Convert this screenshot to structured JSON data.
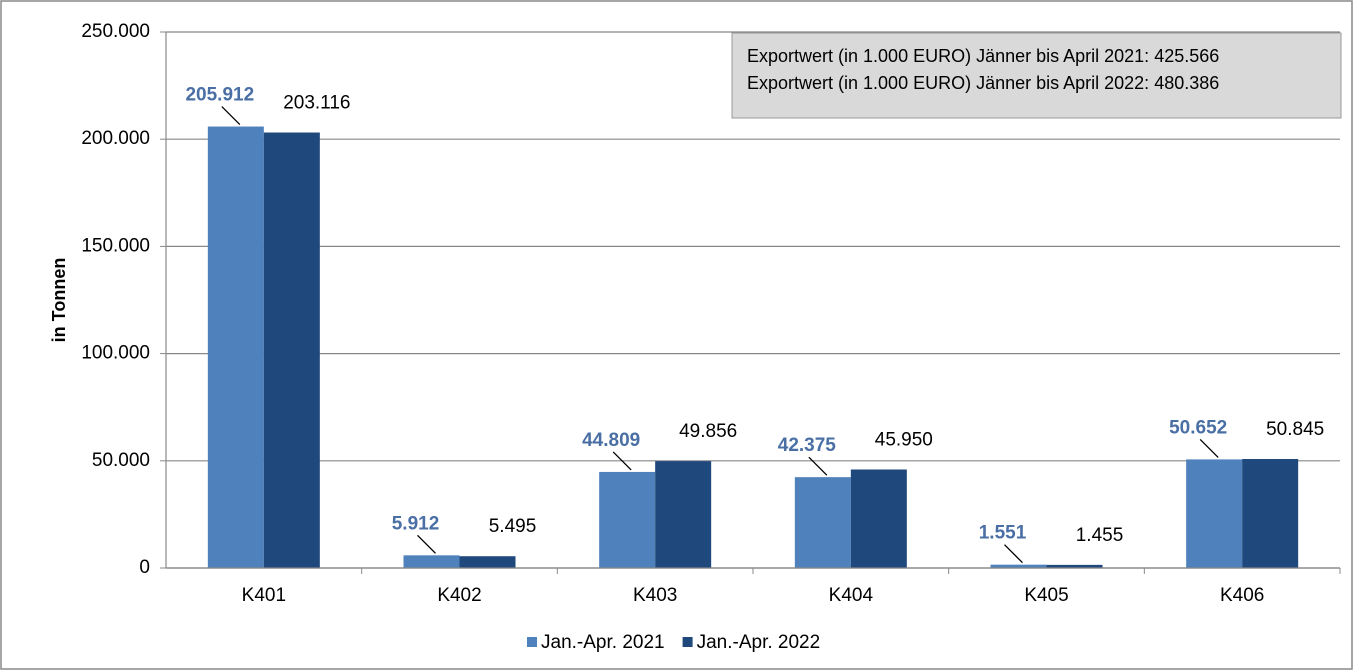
{
  "chart_data": {
    "type": "bar",
    "y_label": "in Tonnen",
    "annotations": [
      "Exportwert (in 1.000 EURO) Jänner bis April 2021: 425.566",
      "Exportwert (in 1.000 EURO) Jänner bis April 2022: 480.386"
    ],
    "categories": [
      "K401",
      "K402",
      "K403",
      "K404",
      "K405",
      "K406"
    ],
    "series": [
      {
        "name": "Jan.-Apr. 2021",
        "color": "#4f81bd",
        "values": [
          205912,
          5912,
          44809,
          42375,
          1551,
          50652
        ],
        "value_labels": [
          "205.912",
          "5.912",
          "44.809",
          "42.375",
          "1.551",
          "50.652"
        ]
      },
      {
        "name": "Jan.-Apr. 2022",
        "color": "#1f497d",
        "values": [
          203116,
          5495,
          49856,
          45950,
          1455,
          50845
        ],
        "value_labels": [
          "203.116",
          "5.495",
          "49.856",
          "45.950",
          "1.455",
          "50.845"
        ]
      }
    ],
    "ylim": [
      0,
      250000
    ],
    "yticks": [
      0,
      {
        "value": 50000,
        "label": "50.000"
      },
      {
        "value": 100000,
        "label": "100.000"
      },
      {
        "value": 150000,
        "label": "150.000"
      },
      {
        "value": 200000,
        "label": "200.000"
      },
      {
        "value": 250000,
        "label": "250.000"
      }
    ],
    "grid": true
  }
}
